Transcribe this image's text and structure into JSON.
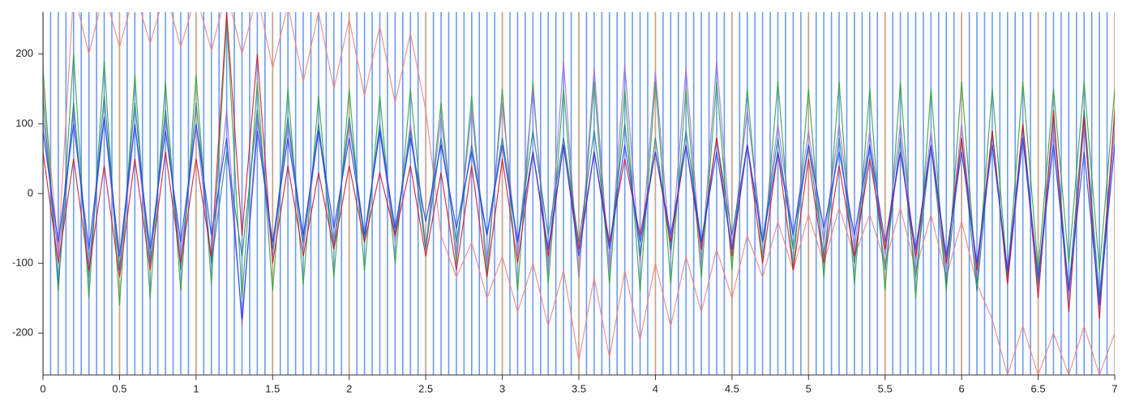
{
  "chart_data": {
    "type": "line",
    "x": [
      0,
      0.1,
      0.2,
      0.3,
      0.4,
      0.5,
      0.6,
      0.7,
      0.8,
      0.9,
      1,
      1.1,
      1.2,
      1.3,
      1.4,
      1.5,
      1.6,
      1.7,
      1.8,
      1.9,
      2,
      2.1,
      2.2,
      2.3,
      2.4,
      2.5,
      2.6,
      2.7,
      2.8,
      2.9,
      3,
      3.1,
      3.2,
      3.3,
      3.4,
      3.5,
      3.6,
      3.7,
      3.8,
      3.9,
      4,
      4.1,
      4.2,
      4.3,
      4.4,
      4.5,
      4.6,
      4.7,
      4.8,
      4.9,
      5,
      5.1,
      5.2,
      5.3,
      5.4,
      5.5,
      5.6,
      5.7,
      5.8,
      5.9,
      6,
      6.1,
      6.2,
      6.3,
      6.4,
      6.5,
      6.6,
      6.7,
      6.8,
      6.9,
      7
    ],
    "series": [
      {
        "color": "#f08080",
        "values": [
          160,
          -80,
          290,
          200,
          290,
          210,
          290,
          215,
          290,
          210,
          285,
          205,
          290,
          200,
          285,
          180,
          270,
          160,
          260,
          150,
          250,
          140,
          240,
          130,
          230,
          120,
          -60,
          -120,
          -70,
          -150,
          -90,
          -170,
          -100,
          -190,
          -110,
          -240,
          -120,
          -235,
          -110,
          -210,
          -100,
          -190,
          -90,
          -170,
          -80,
          -150,
          -60,
          -120,
          -40,
          -110,
          -30,
          -100,
          -20,
          -90,
          -30,
          -100,
          -20,
          -110,
          -30,
          -120,
          -40,
          -130,
          -180,
          -260,
          -190,
          -260,
          -200,
          -260,
          -190,
          -260,
          -200
        ]
      },
      {
        "color": "#2e9e3e",
        "values": [
          180,
          -140,
          200,
          -150,
          190,
          -160,
          170,
          -150,
          160,
          -140,
          170,
          -130,
          250,
          -150,
          160,
          -140,
          150,
          -130,
          140,
          -120,
          150,
          -110,
          140,
          -100,
          150,
          -80,
          130,
          -100,
          140,
          -120,
          150,
          -140,
          160,
          -130,
          150,
          -120,
          160,
          -130,
          150,
          -140,
          160,
          -130,
          150,
          -120,
          160,
          -110,
          150,
          -100,
          160,
          -110,
          150,
          -120,
          160,
          -130,
          150,
          -140,
          160,
          -150,
          150,
          -140,
          160,
          -130,
          150,
          -120,
          160,
          -110,
          150,
          -100,
          160,
          -110,
          150
        ]
      },
      {
        "color": "#9a6fe0",
        "values": [
          110,
          -90,
          120,
          -100,
          110,
          -110,
          100,
          -100,
          110,
          -90,
          100,
          -100,
          120,
          -190,
          110,
          -90,
          100,
          -80,
          90,
          -70,
          100,
          -60,
          90,
          -70,
          100,
          -80,
          110,
          -90,
          120,
          -100,
          130,
          -90,
          150,
          -110,
          190,
          -120,
          180,
          -110,
          185,
          -100,
          175,
          -90,
          180,
          -100,
          190,
          -80,
          120,
          -70,
          100,
          -60,
          90,
          -70,
          100,
          -80,
          90,
          -90,
          100,
          -100,
          90,
          -110,
          100,
          -120,
          90,
          -130,
          80,
          -140,
          90,
          -150,
          100,
          -160,
          90
        ]
      },
      {
        "color": "#1f7a8c",
        "values": [
          140,
          -130,
          130,
          -120,
          140,
          -110,
          130,
          -100,
          120,
          -110,
          130,
          -100,
          60,
          -90,
          120,
          -80,
          110,
          -70,
          100,
          -80,
          110,
          -70,
          100,
          -60,
          90,
          -80,
          80,
          -70,
          70,
          -60,
          80,
          -70,
          90,
          -60,
          80,
          -70,
          90,
          -80,
          100,
          -90,
          80,
          -80,
          90,
          -70,
          80,
          -60,
          70,
          -70,
          80,
          -80,
          70,
          -90,
          80,
          -100,
          70,
          -110,
          80,
          -120,
          70,
          -130,
          80,
          -140,
          90,
          -120,
          100,
          -130,
          110,
          -140,
          120,
          -150,
          110
        ]
      },
      {
        "color": "#d0102a",
        "values": [
          60,
          -100,
          50,
          -110,
          40,
          -120,
          50,
          -110,
          60,
          -100,
          50,
          -90,
          260,
          -60,
          200,
          -100,
          40,
          -90,
          30,
          -80,
          40,
          -70,
          30,
          -60,
          40,
          -90,
          30,
          -110,
          40,
          -120,
          50,
          -100,
          60,
          -90,
          70,
          -80,
          60,
          -70,
          50,
          -60,
          60,
          -70,
          70,
          -80,
          80,
          -90,
          70,
          -100,
          60,
          -110,
          50,
          -100,
          40,
          -90,
          50,
          -80,
          60,
          -90,
          70,
          -100,
          80,
          -110,
          90,
          -130,
          100,
          -150,
          120,
          -170,
          110,
          -180,
          120
        ]
      },
      {
        "color": "#1a3cff",
        "values": [
          90,
          -70,
          100,
          -80,
          110,
          -90,
          100,
          -80,
          90,
          -70,
          100,
          -60,
          80,
          -180,
          90,
          -70,
          80,
          -60,
          90,
          -50,
          80,
          -60,
          90,
          -50,
          80,
          -40,
          70,
          -50,
          60,
          -60,
          70,
          -70,
          60,
          -80,
          70,
          -90,
          60,
          -80,
          70,
          -70,
          60,
          -60,
          70,
          -70,
          60,
          -80,
          70,
          -70,
          60,
          -60,
          70,
          -50,
          60,
          -60,
          70,
          -70,
          60,
          -80,
          70,
          -90,
          60,
          -100,
          70,
          -110,
          80,
          -120,
          70,
          -140,
          60,
          -160,
          70
        ]
      }
    ],
    "event_x": [
      0,
      0.05,
      0.1,
      0.15,
      0.2,
      0.25,
      0.3,
      0.35,
      0.4,
      0.45,
      0.5,
      0.55,
      0.6,
      0.65,
      0.7,
      0.75,
      0.8,
      0.85,
      0.9,
      0.95,
      1,
      1.05,
      1.1,
      1.15,
      1.2,
      1.25,
      1.3,
      1.35,
      1.4,
      1.45,
      1.5,
      1.55,
      1.6,
      1.65,
      1.7,
      1.75,
      1.8,
      1.85,
      1.9,
      1.95,
      2,
      2.05,
      2.1,
      2.15,
      2.2,
      2.25,
      2.3,
      2.35,
      2.4,
      2.45,
      2.5,
      2.55,
      2.6,
      2.65,
      2.7,
      2.75,
      2.8,
      2.85,
      2.9,
      2.95,
      3,
      3.05,
      3.1,
      3.15,
      3.2,
      3.25,
      3.3,
      3.35,
      3.4,
      3.45,
      3.5,
      3.55,
      3.6,
      3.65,
      3.7,
      3.75,
      3.8,
      3.85,
      3.9,
      3.95,
      4,
      4.05,
      4.1,
      4.15,
      4.2,
      4.25,
      4.3,
      4.35,
      4.4,
      4.45,
      4.5,
      4.55,
      4.6,
      4.65,
      4.7,
      4.75,
      4.8,
      4.85,
      4.9,
      4.95,
      5,
      5.05,
      5.1,
      5.15,
      5.2,
      5.25,
      5.3,
      5.35,
      5.4,
      5.45,
      5.5,
      5.55,
      5.6,
      5.65,
      5.7,
      5.75,
      5.8,
      5.85,
      5.9,
      5.95,
      6,
      6.05,
      6.1,
      6.15,
      6.2,
      6.25,
      6.3,
      6.35,
      6.4,
      6.45,
      6.5,
      6.55,
      6.6,
      6.65,
      6.7,
      6.75,
      6.8,
      6.85,
      6.9,
      6.95,
      7
    ],
    "event_color": "#6b9bf0",
    "xlim": [
      0,
      7
    ],
    "xticks": [
      0,
      0.5,
      1,
      1.5,
      2,
      2.5,
      3,
      3.5,
      4,
      4.5,
      5,
      5.5,
      6,
      6.5,
      7
    ],
    "ylim": [
      -260,
      260
    ],
    "yticks": [
      -200,
      -100,
      0,
      100,
      200
    ],
    "grid": true,
    "grid_color": "#f0a050"
  }
}
